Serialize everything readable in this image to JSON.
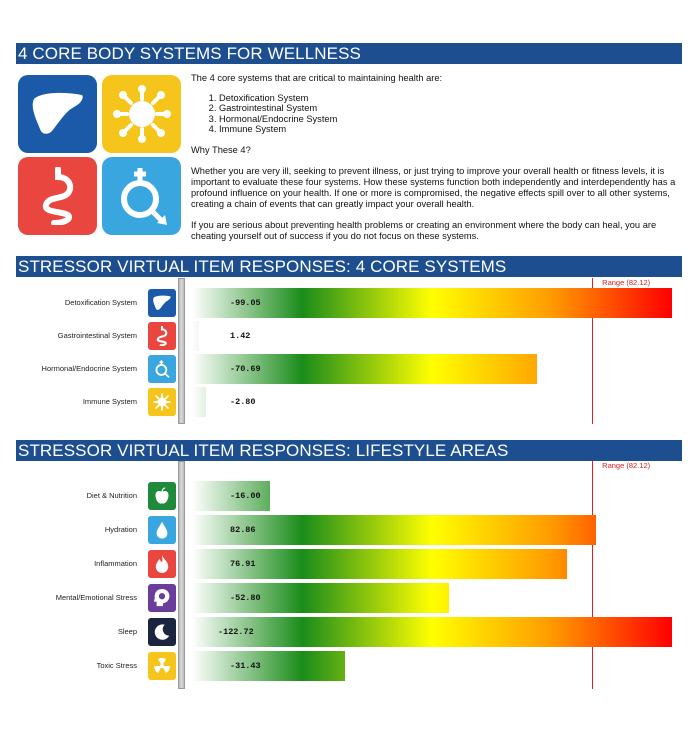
{
  "section1": {
    "title": "4 CORE BODY SYSTEMS FOR WELLNESS",
    "intro": "The 4 core systems that are critical to maintaining health are:",
    "systems": [
      "Detoxification System",
      "Gastrointestinal System",
      "Hormonal/Endocrine System",
      "Immune System"
    ],
    "why_heading": "Why These 4?",
    "paragraph1": "Whether you are very ill, seeking to prevent illness, or just trying to improve your overall health or fitness levels, it is important to evaluate these four systems. How these systems function both independently and interdependently has a profound influence on your health. If one or more is compromised, the negative effects spill over to all other systems, creating a chain of events that can greatly impact your overall health.",
    "paragraph2": "If you are serious about preventing health problems or creating an environment where the body can heal, you are cheating yourself out of success if you do not focus on these systems.",
    "tile_icons": [
      "liver-icon",
      "immune-cell-icon",
      "stomach-icon",
      "hormone-icon"
    ]
  },
  "chart_core": {
    "title": "STRESSOR VIRTUAL ITEM RESPONSES: 4 CORE SYSTEMS",
    "reference_label": "Range (82.12)",
    "chart_data": {
      "type": "bar",
      "orientation": "horizontal",
      "title": "STRESSOR VIRTUAL ITEM RESPONSES: 4 CORE SYSTEMS",
      "categories": [
        "Detoxification System",
        "Gastrointestinal System",
        "Hormonal/Endocrine System",
        "Immune System"
      ],
      "values": [
        -99.05,
        1.42,
        -70.69,
        -2.8
      ],
      "value_labels": [
        "-99.05",
        "1.42",
        "-70.69",
        "-2.80"
      ],
      "bar_extent_abs": [
        98.5,
        1.42,
        70.7,
        2.8
      ],
      "reference_line": 82.12,
      "reference_label": "Range (82.12)",
      "xlim": [
        0,
        98.5
      ],
      "icons": [
        "liver-icon",
        "stomach-icon",
        "hormone-icon",
        "immune-cell-icon"
      ],
      "icon_colors": [
        "#1a5aa8",
        "#e9463f",
        "#3aa6e0",
        "#f6c51c"
      ]
    }
  },
  "chart_lifestyle": {
    "title": "STRESSOR VIRTUAL ITEM RESPONSES: LIFESTYLE AREAS",
    "reference_label": "Range (82.12)",
    "chart_data": {
      "type": "bar",
      "orientation": "horizontal",
      "title": "STRESSOR VIRTUAL ITEM RESPONSES: LIFESTYLE AREAS",
      "categories": [
        "Diet & Nutrition",
        "Hydration",
        "Inflammation",
        "Mental/Emotional Stress",
        "Sleep",
        "Toxic Stress"
      ],
      "values": [
        -16.0,
        82.86,
        76.91,
        -52.8,
        -122.72,
        -31.43
      ],
      "value_labels": [
        "-16.00",
        "82.86",
        "76.91",
        "-52.80",
        "-122.72",
        "-31.43"
      ],
      "bar_extent_abs": [
        16.0,
        82.86,
        76.91,
        52.8,
        98.5,
        31.43
      ],
      "reference_line": 82.12,
      "reference_label": "Range (82.12)",
      "xlim": [
        0,
        98.5
      ],
      "icons": [
        "apple-icon",
        "water-drop-icon",
        "flame-icon",
        "brain-head-icon",
        "moon-icon",
        "radiation-icon"
      ],
      "icon_colors": [
        "#1f8a3c",
        "#3aa6e0",
        "#e9463f",
        "#6a3d9a",
        "#1c2540",
        "#f6c51c"
      ]
    }
  }
}
